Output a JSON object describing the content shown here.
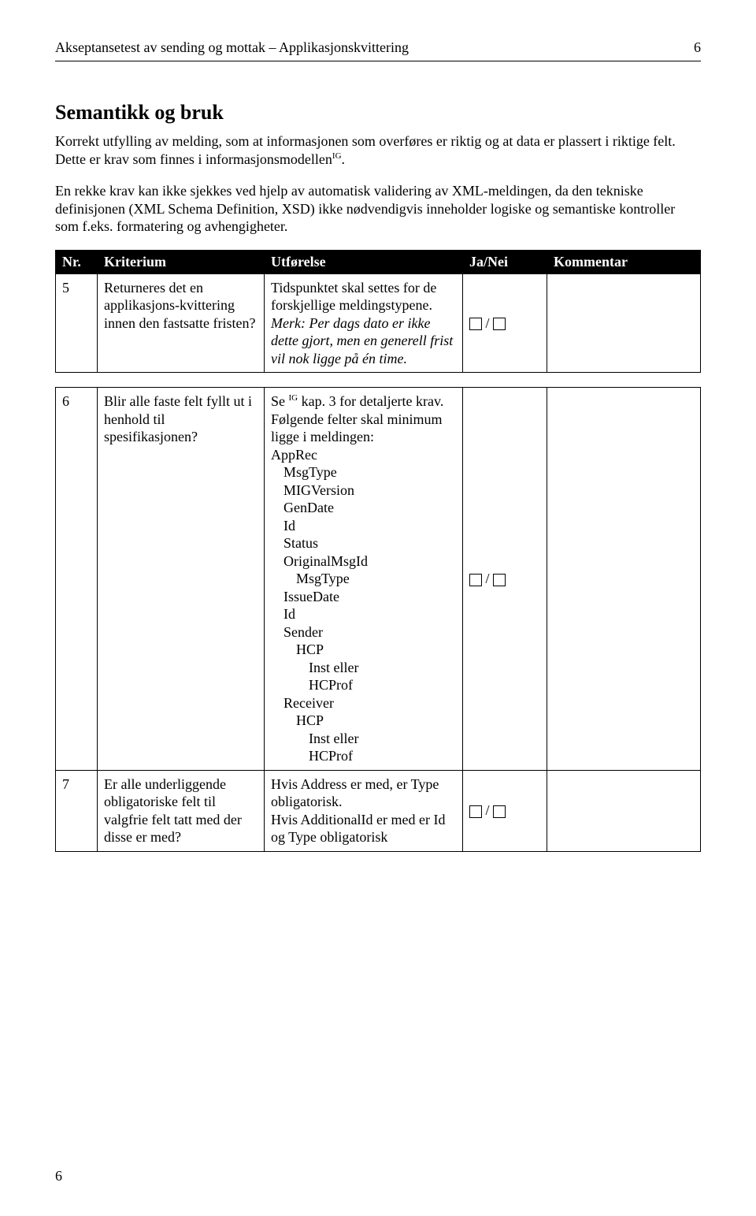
{
  "header": {
    "title": "Akseptansetest av sending og mottak – Applikasjonskvittering",
    "page_num_top": "6"
  },
  "section": {
    "title": "Semantikk og bruk",
    "para1_a": "Korrekt utfylling av melding, som at informasjonen som overføres er riktig og at data er plassert i riktige felt. Dette er krav som finnes i informasjonsmodellen",
    "para1_sup": "IG",
    "para1_b": ".",
    "para2": "En rekke krav kan ikke sjekkes ved hjelp av automatisk validering av XML-meldingen, da den tekniske definisjonen (XML Schema Definition, XSD) ikke nødvendigvis inneholder logiske og semantiske kontroller som f.eks. formatering og avhengigheter."
  },
  "table": {
    "headers": {
      "nr": "Nr.",
      "kriterium": "Kriterium",
      "utforelse": "Utførelse",
      "janei": "Ja/Nei",
      "kommentar": "Kommentar"
    },
    "row5": {
      "nr": "5",
      "kriterium": "Returneres det en applikasjons-kvittering innen den fastsatte fristen?",
      "utf_a": "Tidspunktet skal settes for de forskjellige meldingstypene. ",
      "utf_b": "Merk: Per dags dato er ikke dette gjort, men en generell frist vil nok ligge på én time."
    },
    "row6": {
      "nr": "6",
      "kriterium": "Blir alle faste felt fyllt ut i henhold til spesifikasjonen?",
      "utf_a": "Se ",
      "utf_sup": "IG",
      "utf_b": " kap. 3 for detaljerte krav. Følgende felter skal minimum ligge i meldingen:",
      "list": {
        "l1": "AppRec",
        "l2": "MsgType",
        "l3": "MIGVersion",
        "l4": "GenDate",
        "l5": "Id",
        "l6": "Status",
        "l7": "OriginalMsgId",
        "l8": "MsgType",
        "l9": "IssueDate",
        "l10": "Id",
        "l11": "Sender",
        "l12": "HCP",
        "l13": "Inst eller",
        "l14": "HCProf",
        "l15": "Receiver",
        "l16": "HCP",
        "l17": "Inst eller",
        "l18": "HCProf"
      }
    },
    "row7": {
      "nr": "7",
      "kriterium": "Er alle underliggende obligatoriske felt til valgfrie felt tatt med der disse er med?",
      "utf": "Hvis Address er med, er Type obligatorisk.\nHvis AdditionalId er med er Id og Type obligatorisk"
    }
  },
  "footer": {
    "page_num": "6"
  }
}
